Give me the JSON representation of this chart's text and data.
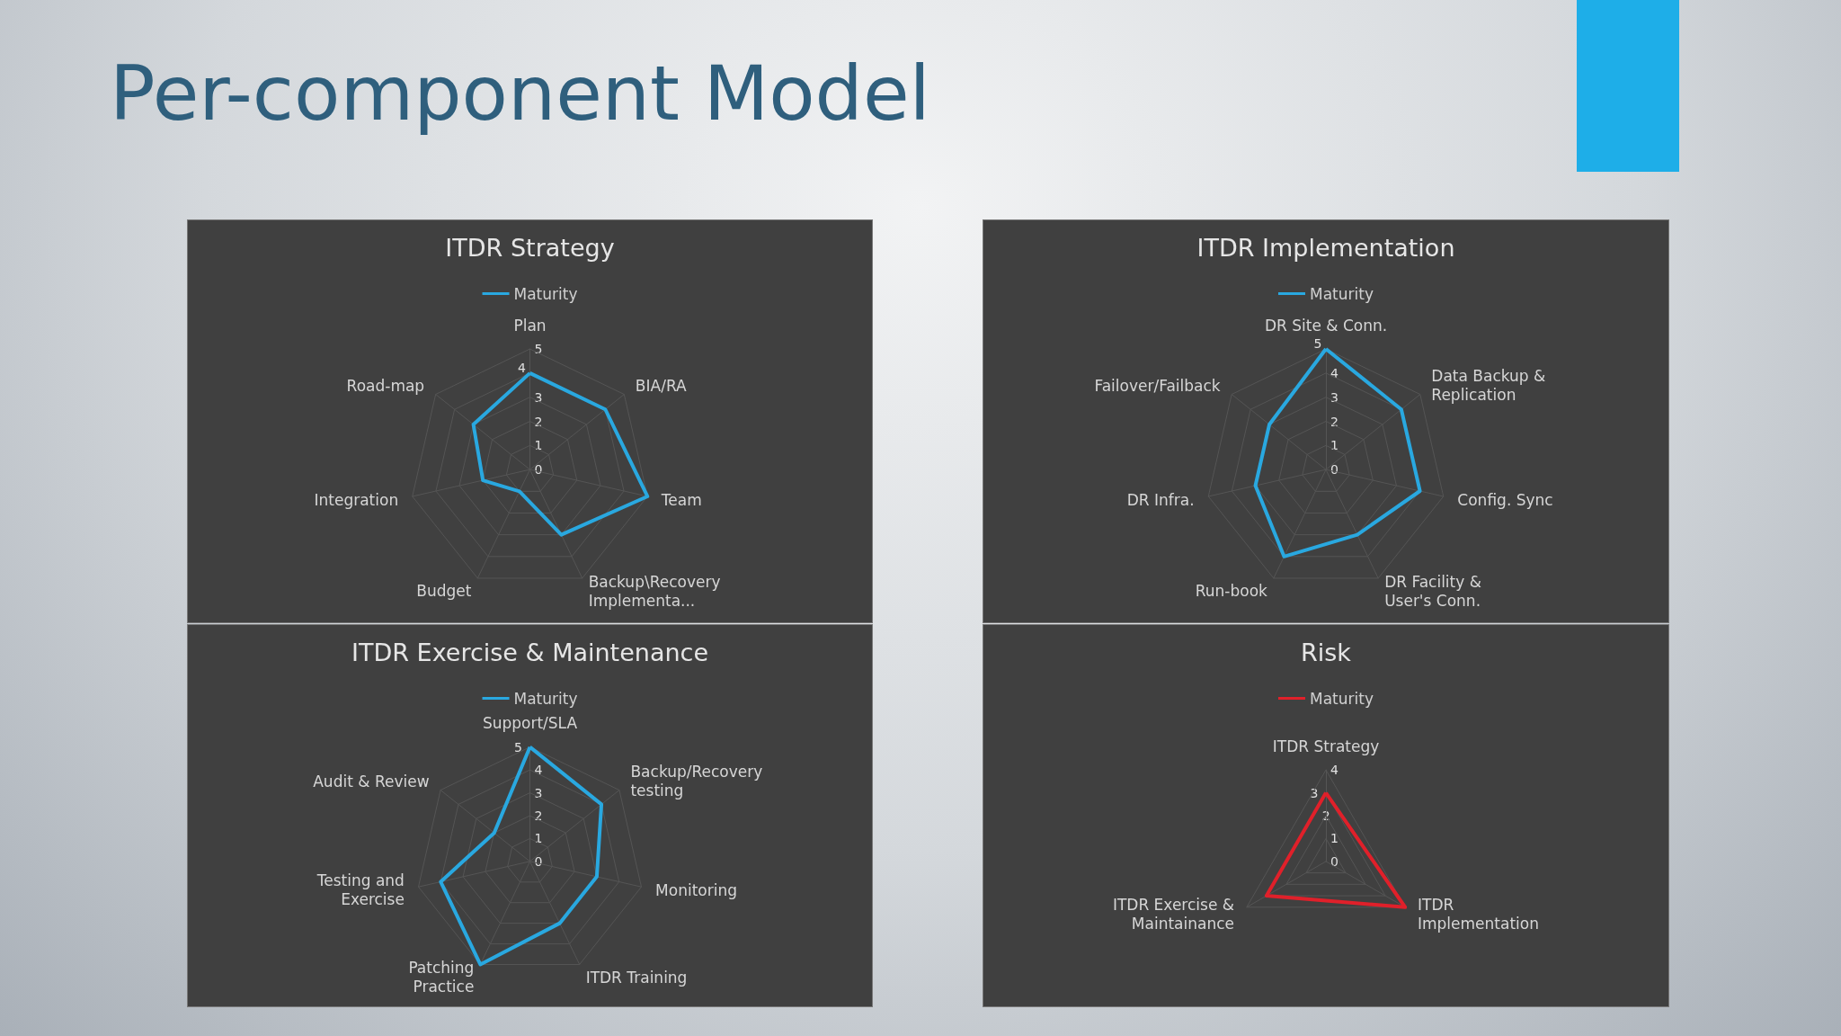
{
  "chart_data": [
    {
      "type": "other",
      "title": "Per-component Model"
    },
    {
      "type": "radar",
      "title": "ITDR Strategy",
      "categories": [
        "Plan",
        "BIA/RA",
        "Team",
        "Backup\\Recovery Implementa...",
        "Budget",
        "Integration",
        "Road-map"
      ],
      "series": [
        {
          "name": "Maturity",
          "color": "#29a8e0",
          "values": [
            4,
            4,
            5,
            3,
            1,
            2,
            3
          ]
        }
      ],
      "ylim": [
        0,
        5
      ],
      "yticks": [
        0,
        1,
        2,
        3,
        4,
        5
      ],
      "grid": true,
      "legend": "top",
      "marker": "none",
      "line_style": "solid"
    },
    {
      "type": "radar",
      "title": "ITDR Implementation",
      "categories": [
        "DR Site & Conn.",
        "Data Backup & Replication",
        "Config. Sync",
        "DR Facility & User's Conn.",
        "Run-book",
        "DR Infra.",
        "Failover/Failback"
      ],
      "series": [
        {
          "name": "Maturity",
          "color": "#29a8e0",
          "values": [
            5,
            4,
            4,
            3,
            4,
            3,
            3
          ]
        }
      ],
      "ylim": [
        0,
        5
      ],
      "yticks": [
        0,
        1,
        2,
        3,
        4,
        5
      ],
      "grid": true,
      "legend": "top",
      "marker": "none",
      "line_style": "solid"
    },
    {
      "type": "radar",
      "title": "ITDR Exercise & Maintenance",
      "categories": [
        "Support/SLA",
        "Backup/Recovery testing",
        "Monitoring",
        "ITDR Training",
        "Patching Practice",
        "Testing and Exercise",
        "Audit & Review"
      ],
      "series": [
        {
          "name": "Maturity",
          "color": "#29a8e0",
          "values": [
            5,
            4,
            3,
            3,
            5,
            4,
            2
          ]
        }
      ],
      "ylim": [
        0,
        5
      ],
      "yticks": [
        0,
        1,
        2,
        3,
        4,
        5
      ],
      "grid": true,
      "legend": "top",
      "marker": "none",
      "line_style": "solid"
    },
    {
      "type": "radar",
      "title": "Risk",
      "categories": [
        "ITDR Strategy",
        "ITDR Implementation",
        "ITDR Exercise & Maintainance"
      ],
      "series": [
        {
          "name": "Maturity",
          "color": "#e0202a",
          "values": [
            3,
            4,
            3
          ]
        }
      ],
      "ylim": [
        0,
        4
      ],
      "yticks": [
        0,
        1,
        2,
        3,
        4
      ],
      "grid": true,
      "legend": "top",
      "marker": "none",
      "line_style": "solid"
    }
  ]
}
